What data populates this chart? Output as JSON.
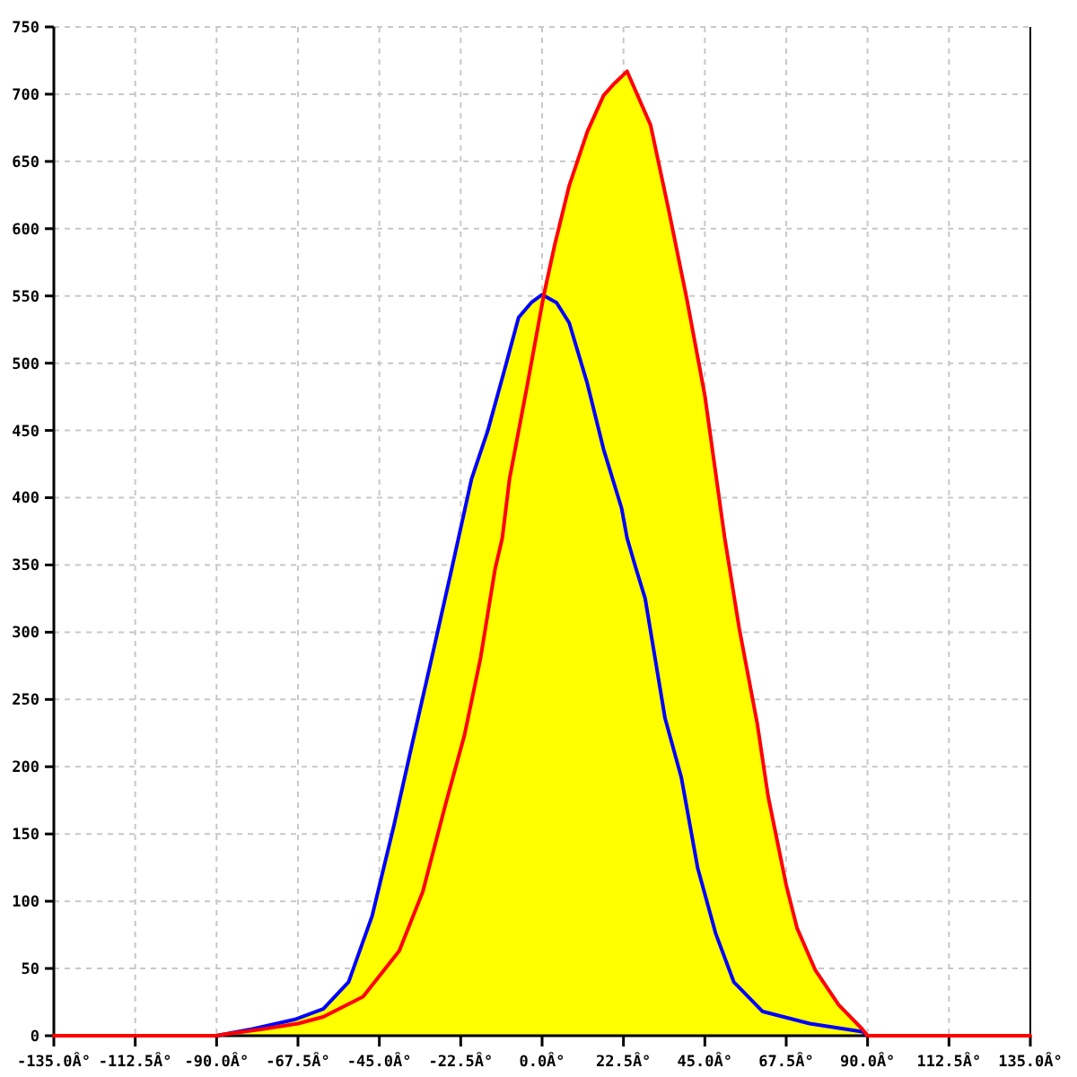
{
  "chart_data": {
    "type": "line",
    "xlim": [
      -135,
      135
    ],
    "xticks": [
      {
        "value": -135,
        "label": "-135.0Â°"
      },
      {
        "value": -112.5,
        "label": "-112.5Â°"
      },
      {
        "value": -90,
        "label": "-90.0Â°"
      },
      {
        "value": -67.5,
        "label": "-67.5Â°"
      },
      {
        "value": -45,
        "label": "-45.0Â°"
      },
      {
        "value": -22.5,
        "label": "-22.5Â°"
      },
      {
        "value": 0,
        "label": "0.0Â°"
      },
      {
        "value": 22.5,
        "label": "22.5Â°"
      },
      {
        "value": 45,
        "label": "45.0Â°"
      },
      {
        "value": 67.5,
        "label": "67.5Â°"
      },
      {
        "value": 90,
        "label": "90.0Â°"
      },
      {
        "value": 112.5,
        "label": "112.5Â°"
      },
      {
        "value": 135,
        "label": "135.0Â°"
      }
    ],
    "ylim": [
      0,
      750
    ],
    "yticks": [
      0,
      50,
      100,
      150,
      200,
      250,
      300,
      350,
      400,
      450,
      500,
      550,
      600,
      650,
      700,
      750
    ],
    "grid": true,
    "series": [
      {
        "type": "area",
        "color": "#ffff00",
        "x": [
          -90,
          -80,
          -68.5,
          -60.5,
          -53.5,
          -47,
          -41,
          -36.5,
          -30.5,
          -25,
          -19.5,
          -15,
          -10.5,
          -6.5,
          -3,
          0.5,
          3.5,
          7.5,
          12.5,
          17,
          20,
          23.5,
          30,
          35,
          40,
          45,
          50.5,
          54.5,
          59.5,
          62.5,
          67.5,
          70.5,
          75.5,
          82,
          88.5,
          90
        ],
        "values": [
          0,
          5,
          12,
          20,
          40,
          89,
          156,
          210,
          281,
          347,
          414,
          450,
          494,
          534,
          545,
          551,
          588,
          632,
          672,
          699,
          708,
          717,
          677,
          614,
          548,
          476,
          370,
          303,
          232,
          178,
          112,
          80,
          49,
          23,
          5,
          0
        ]
      },
      {
        "color": "#0000ff",
        "x": [
          -90,
          -80,
          -68.5,
          -60.5,
          -53.5,
          -47,
          -41,
          -36.5,
          -30.5,
          -25,
          -19.5,
          -15,
          -10.5,
          -6.5,
          -3,
          0,
          4,
          7.5,
          12.5,
          17,
          22,
          23.5,
          26,
          28.5,
          34,
          38.5,
          43,
          48,
          53,
          61,
          74,
          88.5,
          90
        ],
        "values": [
          0,
          5,
          12,
          20,
          40,
          89,
          156,
          210,
          281,
          347,
          414,
          450,
          494,
          534,
          545,
          551,
          545,
          530,
          485,
          436,
          392,
          370,
          347,
          325,
          236,
          192,
          125,
          76,
          40,
          18,
          9,
          3,
          0
        ]
      },
      {
        "color": "#ff0000",
        "x": [
          -135,
          -90,
          -88,
          -77,
          -67.5,
          -60.5,
          -49.5,
          -39.5,
          -33,
          -26.5,
          -21.5,
          -17,
          -13,
          -11,
          -9,
          -4,
          0.5,
          3.5,
          7.5,
          12.5,
          17,
          20,
          23.5,
          30,
          35,
          40,
          45,
          50.5,
          54.5,
          59.5,
          62.5,
          67.5,
          70.5,
          75.5,
          82,
          88.5,
          90,
          135
        ],
        "values": [
          0,
          0,
          1,
          5,
          9,
          14,
          29,
          63,
          107,
          174,
          223,
          281,
          347,
          370,
          414,
          485,
          551,
          588,
          632,
          672,
          699,
          708,
          717,
          677,
          614,
          548,
          476,
          370,
          303,
          232,
          178,
          112,
          80,
          49,
          23,
          5,
          0,
          0
        ]
      }
    ]
  }
}
